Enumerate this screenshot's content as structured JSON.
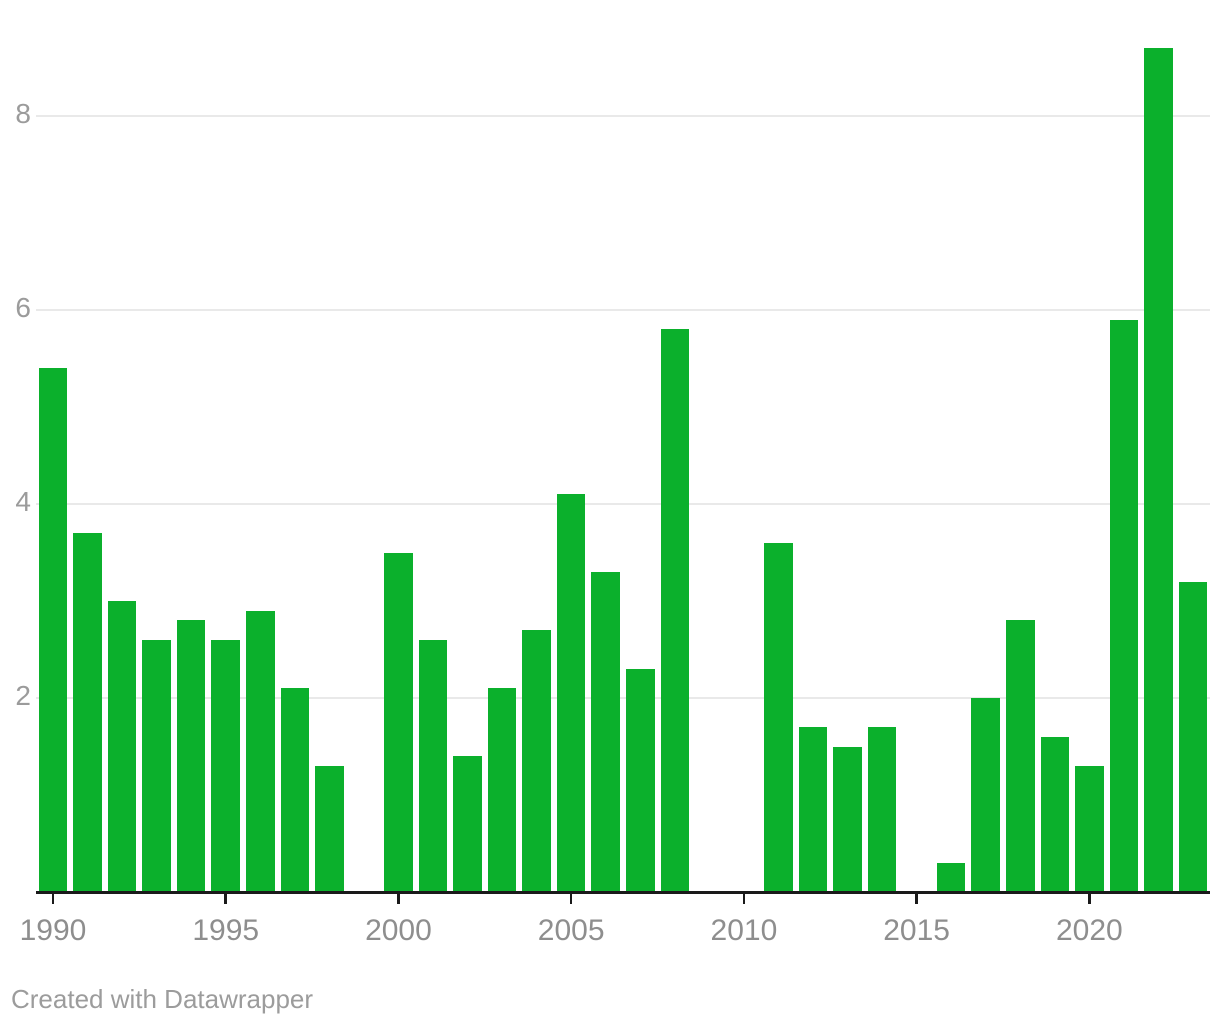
{
  "chart_data": {
    "type": "bar",
    "title": "",
    "xlabel": "",
    "ylabel": "",
    "categories": [
      1990,
      1991,
      1992,
      1993,
      1994,
      1995,
      1996,
      1997,
      1998,
      1999,
      2000,
      2001,
      2002,
      2003,
      2004,
      2005,
      2006,
      2007,
      2008,
      2009,
      2010,
      2011,
      2012,
      2013,
      2014,
      2015,
      2016,
      2017,
      2018,
      2019,
      2020,
      2021,
      2022,
      2023
    ],
    "values": [
      5.4,
      3.7,
      3.0,
      2.6,
      2.8,
      2.6,
      2.9,
      2.1,
      1.3,
      null,
      3.5,
      2.6,
      1.4,
      2.1,
      2.7,
      4.1,
      3.3,
      2.3,
      5.8,
      null,
      null,
      3.6,
      1.7,
      1.5,
      1.7,
      null,
      0.3,
      2.0,
      2.8,
      1.6,
      1.3,
      5.9,
      8.7,
      3.2
    ],
    "ylim": [
      0,
      9.2
    ],
    "ytick_values": [
      2,
      4,
      6,
      8
    ],
    "ytick_labels": [
      "2",
      "4",
      "6",
      "8"
    ],
    "xtick_values": [
      1990,
      1995,
      2000,
      2005,
      2010,
      2015,
      2020
    ],
    "xtick_labels": [
      "1990",
      "1995",
      "2000",
      "2005",
      "2010",
      "2015",
      "2020"
    ],
    "grid": "horizontal",
    "legend": "none"
  },
  "colors": {
    "bar_green": "#0bb02c",
    "gridline": "#e9e9e9",
    "axis_line": "#1a1a1a",
    "tick_mark": "#1a1a1a",
    "x_label_gray": "#8e8e8e",
    "y_label_gray": "#9b9b9b",
    "credit_gray": "#9c9c9c",
    "background": "#ffffff"
  },
  "footer": {
    "credit": "Created with Datawrapper"
  }
}
